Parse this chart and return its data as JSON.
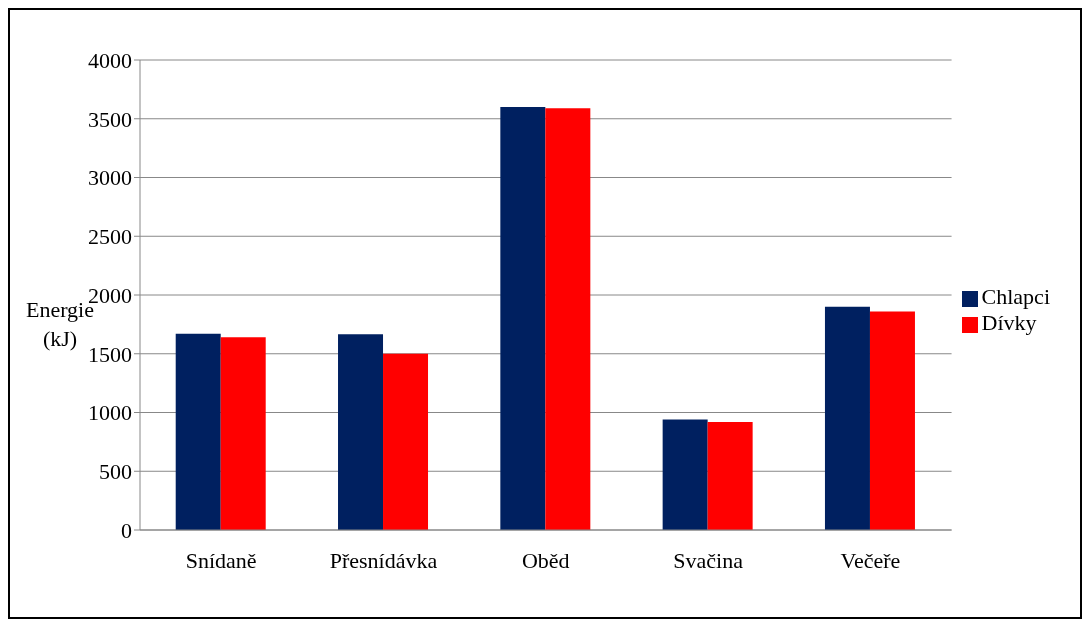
{
  "chart_data": {
    "type": "bar",
    "ylabel": "Energie (kJ)",
    "categories": [
      "Snídaně",
      "Přesnídávka",
      "Oběd",
      "Svačina",
      "Večeře"
    ],
    "series": [
      {
        "name": "Chlapci",
        "color": "#002060",
        "values": [
          1670,
          1665,
          3600,
          940,
          1900
        ]
      },
      {
        "name": "Dívky",
        "color": "#ff0000",
        "values": [
          1640,
          1500,
          3590,
          920,
          1860
        ]
      }
    ],
    "ylim": [
      0,
      4000
    ],
    "yticks": [
      0,
      500,
      1000,
      1500,
      2000,
      2500,
      3000,
      3500,
      4000
    ],
    "grid": "y",
    "legend": "right"
  }
}
